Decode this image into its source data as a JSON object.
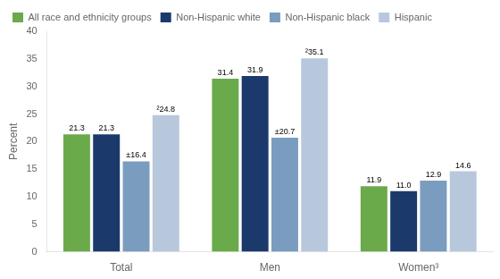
{
  "chart_data": {
    "type": "bar",
    "categories": [
      "Total",
      "Men",
      "Women³"
    ],
    "series": [
      {
        "name": "All race and ethnicity groups",
        "color": "#6aaa4b",
        "values": [
          21.3,
          31.4,
          11.9
        ],
        "value_labels": [
          "21.3",
          "31.4",
          "11.9"
        ]
      },
      {
        "name": "Non-Hispanic white",
        "color": "#1b3a6b",
        "values": [
          21.3,
          31.9,
          11.0
        ],
        "value_labels": [
          "21.3",
          "31.9",
          "11.0"
        ]
      },
      {
        "name": "Non-Hispanic black",
        "color": "#7a9cbf",
        "values": [
          16.4,
          20.7,
          12.9
        ],
        "value_labels": [
          "±16.4",
          "±20.7",
          "12.9"
        ]
      },
      {
        "name": "Hispanic",
        "color": "#b8c8dc",
        "values": [
          24.8,
          35.1,
          14.6
        ],
        "value_labels": [
          "²24.8",
          "²35.1",
          "14.6"
        ]
      }
    ],
    "ylabel": "Percent",
    "ylim": [
      0,
      40
    ],
    "yticks": [
      0,
      5,
      10,
      15,
      20,
      25,
      30,
      35,
      40
    ],
    "grid": false,
    "legend": "upper left",
    "data_labels": true
  }
}
